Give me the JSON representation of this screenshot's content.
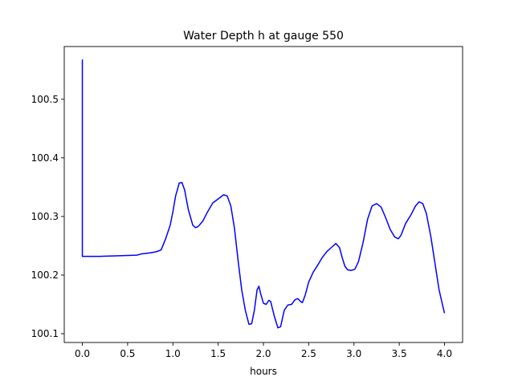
{
  "chart_data": {
    "type": "line",
    "title": "Water Depth h at gauge 550",
    "xlabel": "hours",
    "ylabel": "",
    "xlim": [
      -0.2,
      4.2
    ],
    "ylim": [
      100.085,
      100.59
    ],
    "xticks": [
      {
        "value": 0.0,
        "label": "0.0"
      },
      {
        "value": 0.5,
        "label": "0.5"
      },
      {
        "value": 1.0,
        "label": "1.0"
      },
      {
        "value": 1.5,
        "label": "1.5"
      },
      {
        "value": 2.0,
        "label": "2.0"
      },
      {
        "value": 2.5,
        "label": "2.5"
      },
      {
        "value": 3.0,
        "label": "3.0"
      },
      {
        "value": 3.5,
        "label": "3.5"
      },
      {
        "value": 4.0,
        "label": "4.0"
      }
    ],
    "yticks": [
      {
        "value": 100.1,
        "label": "100.1"
      },
      {
        "value": 100.2,
        "label": "100.2"
      },
      {
        "value": 100.3,
        "label": "100.3"
      },
      {
        "value": 100.4,
        "label": "100.4"
      },
      {
        "value": 100.5,
        "label": "100.5"
      }
    ],
    "grid": false,
    "legend": null,
    "series": [
      {
        "color": "#0000ff",
        "points": [
          [
            0.0,
            100.568
          ],
          [
            0.0,
            100.232
          ],
          [
            0.2,
            100.232
          ],
          [
            0.4,
            100.233
          ],
          [
            0.6,
            100.234
          ],
          [
            0.65,
            100.236
          ],
          [
            0.75,
            100.238
          ],
          [
            0.82,
            100.24
          ],
          [
            0.87,
            100.243
          ],
          [
            0.92,
            100.262
          ],
          [
            0.97,
            100.285
          ],
          [
            1.0,
            100.308
          ],
          [
            1.03,
            100.335
          ],
          [
            1.07,
            100.357
          ],
          [
            1.1,
            100.358
          ],
          [
            1.13,
            100.345
          ],
          [
            1.17,
            100.312
          ],
          [
            1.22,
            100.285
          ],
          [
            1.25,
            100.281
          ],
          [
            1.28,
            100.283
          ],
          [
            1.33,
            100.292
          ],
          [
            1.38,
            100.307
          ],
          [
            1.44,
            100.323
          ],
          [
            1.5,
            100.33
          ],
          [
            1.56,
            100.337
          ],
          [
            1.6,
            100.335
          ],
          [
            1.64,
            100.318
          ],
          [
            1.68,
            100.28
          ],
          [
            1.72,
            100.225
          ],
          [
            1.76,
            100.175
          ],
          [
            1.8,
            100.14
          ],
          [
            1.84,
            100.116
          ],
          [
            1.87,
            100.117
          ],
          [
            1.9,
            100.14
          ],
          [
            1.93,
            100.175
          ],
          [
            1.95,
            100.181
          ],
          [
            1.97,
            100.168
          ],
          [
            2.0,
            100.152
          ],
          [
            2.03,
            100.15
          ],
          [
            2.06,
            100.157
          ],
          [
            2.08,
            100.155
          ],
          [
            2.12,
            100.13
          ],
          [
            2.16,
            100.11
          ],
          [
            2.19,
            100.112
          ],
          [
            2.23,
            100.14
          ],
          [
            2.27,
            100.149
          ],
          [
            2.31,
            100.15
          ],
          [
            2.35,
            100.158
          ],
          [
            2.38,
            100.16
          ],
          [
            2.41,
            100.155
          ],
          [
            2.43,
            100.153
          ],
          [
            2.46,
            100.165
          ],
          [
            2.5,
            100.188
          ],
          [
            2.55,
            100.205
          ],
          [
            2.6,
            100.217
          ],
          [
            2.65,
            100.23
          ],
          [
            2.7,
            100.24
          ],
          [
            2.75,
            100.247
          ],
          [
            2.8,
            100.254
          ],
          [
            2.84,
            100.247
          ],
          [
            2.87,
            100.23
          ],
          [
            2.9,
            100.215
          ],
          [
            2.93,
            100.209
          ],
          [
            2.97,
            100.208
          ],
          [
            3.01,
            100.21
          ],
          [
            3.05,
            100.223
          ],
          [
            3.1,
            100.255
          ],
          [
            3.15,
            100.295
          ],
          [
            3.2,
            100.318
          ],
          [
            3.25,
            100.322
          ],
          [
            3.3,
            100.316
          ],
          [
            3.35,
            100.298
          ],
          [
            3.4,
            100.278
          ],
          [
            3.45,
            100.265
          ],
          [
            3.49,
            100.262
          ],
          [
            3.52,
            100.268
          ],
          [
            3.57,
            100.288
          ],
          [
            3.63,
            100.303
          ],
          [
            3.68,
            100.318
          ],
          [
            3.72,
            100.325
          ],
          [
            3.76,
            100.322
          ],
          [
            3.8,
            100.305
          ],
          [
            3.85,
            100.265
          ],
          [
            3.9,
            100.215
          ],
          [
            3.94,
            100.175
          ],
          [
            3.98,
            100.148
          ],
          [
            4.0,
            100.135
          ]
        ]
      }
    ]
  }
}
